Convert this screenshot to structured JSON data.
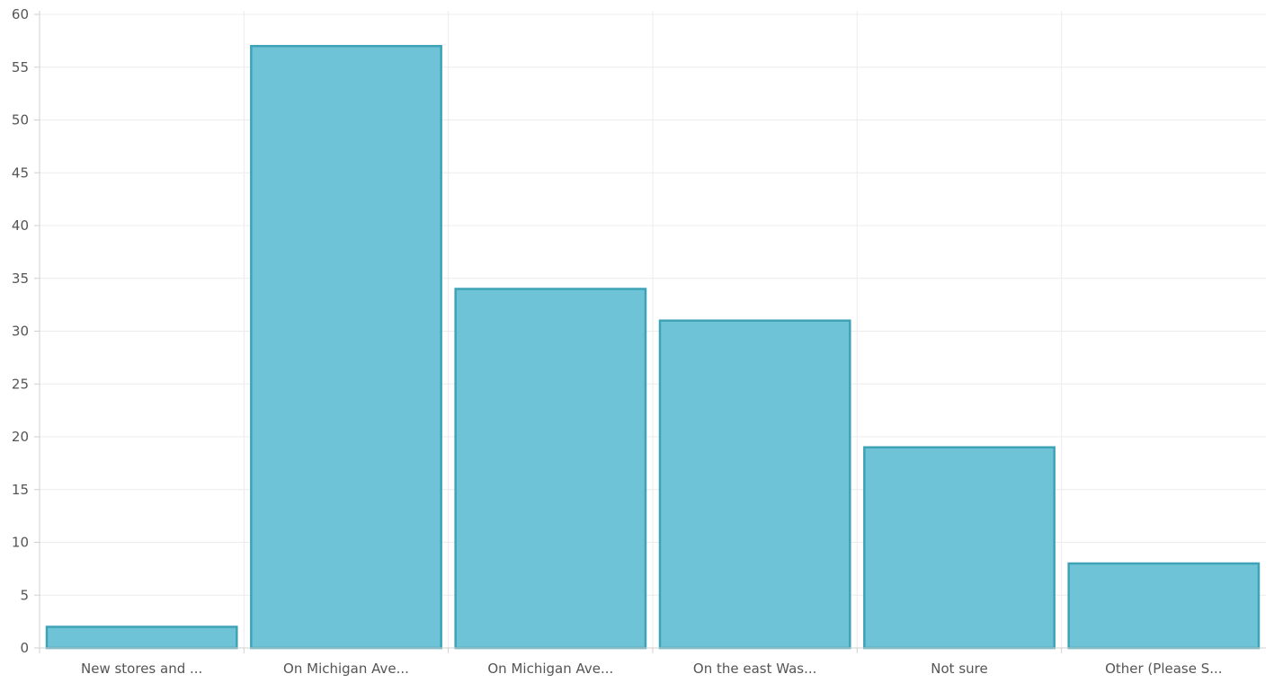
{
  "chart_data": {
    "type": "bar",
    "categories": [
      "New stores and ...",
      "On Michigan Ave...",
      "On Michigan Ave...",
      "On the east Was...",
      "Not sure",
      "Other (Please S..."
    ],
    "values": [
      2,
      57,
      34,
      31,
      19,
      8
    ],
    "ylim": [
      0,
      60
    ],
    "yticks": [
      0,
      5,
      10,
      15,
      20,
      25,
      30,
      35,
      40,
      45,
      50,
      55,
      60
    ],
    "grid": true,
    "title": "",
    "xlabel": "",
    "ylabel": "",
    "colors": {
      "bar_fill": "#6ec4d6",
      "bar_stroke": "#3fa3b7",
      "grid": "#ececec",
      "axis": "#d0d0d0",
      "tick_text": "#555555"
    }
  }
}
